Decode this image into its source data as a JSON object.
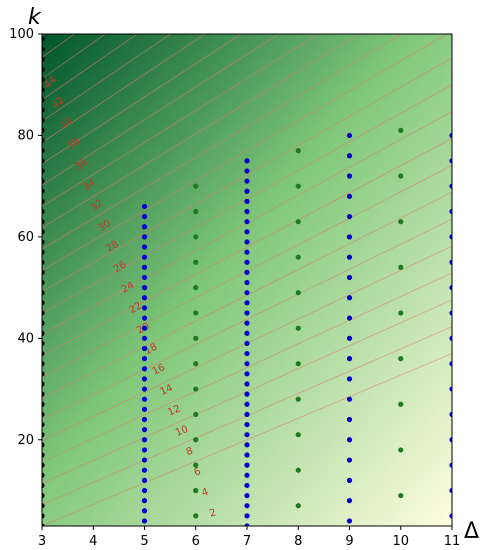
{
  "chart_data": {
    "type": "scatter",
    "title": "",
    "xlabel": "Δ",
    "ylabel": "k",
    "xlim": [
      3,
      11
    ],
    "ylim": [
      3,
      100
    ],
    "x_ticks": [
      "3",
      "4",
      "5",
      "6",
      "7",
      "8",
      "9",
      "10",
      "11"
    ],
    "y_ticks": [
      "20",
      "40",
      "60",
      "80",
      "100"
    ],
    "grid": false,
    "background": "green gradient heatmap, darker toward top-left",
    "colors": {
      "black_points": "#000000",
      "blue_points": "#0000cc",
      "green_points": "#1e7a1e",
      "contour_lines": "#e07b6a",
      "contour_labels": "#c0392b",
      "gradient_dark": "#00552b",
      "gradient_light": "#fffde0"
    },
    "contour_labels": [
      "2",
      "4",
      "6",
      "8",
      "10",
      "12",
      "14",
      "16",
      "18",
      "20",
      "22",
      "24",
      "26",
      "28",
      "30",
      "32",
      "34",
      "36",
      "38",
      "40",
      "42",
      "44"
    ],
    "series": [
      {
        "color": "black",
        "points": [
          [
            3,
            3
          ],
          [
            3,
            5
          ],
          [
            3,
            7
          ],
          [
            3,
            9
          ],
          [
            3,
            11
          ],
          [
            3,
            13
          ],
          [
            3,
            15
          ],
          [
            3,
            17
          ],
          [
            3,
            19
          ],
          [
            3,
            21
          ],
          [
            3,
            23
          ],
          [
            3,
            25
          ],
          [
            3,
            27
          ],
          [
            3,
            29
          ],
          [
            3,
            31
          ],
          [
            3,
            33
          ],
          [
            3,
            35
          ],
          [
            3,
            37
          ],
          [
            3,
            39
          ],
          [
            3,
            41
          ],
          [
            3,
            43
          ],
          [
            3,
            45
          ],
          [
            3,
            47
          ],
          [
            3,
            49
          ],
          [
            3,
            51
          ],
          [
            3,
            53
          ],
          [
            3,
            55
          ],
          [
            3,
            57
          ],
          [
            3,
            59
          ],
          [
            3,
            61
          ],
          [
            3,
            63
          ],
          [
            3,
            65
          ],
          [
            3,
            67
          ],
          [
            3,
            69
          ],
          [
            3,
            71
          ],
          [
            3,
            73
          ],
          [
            3,
            75
          ],
          [
            3,
            77
          ],
          [
            3,
            79
          ],
          [
            3,
            81
          ],
          [
            3,
            83
          ],
          [
            3,
            85
          ],
          [
            3,
            87
          ],
          [
            3,
            89
          ],
          [
            3,
            91
          ],
          [
            3,
            93
          ],
          [
            3,
            95
          ],
          [
            3,
            97
          ],
          [
            3,
            99
          ]
        ]
      },
      {
        "color": "blue",
        "points": [
          [
            5,
            4
          ],
          [
            5,
            6
          ],
          [
            5,
            8
          ],
          [
            5,
            10
          ],
          [
            5,
            12
          ],
          [
            5,
            14
          ],
          [
            5,
            16
          ],
          [
            5,
            18
          ],
          [
            5,
            20
          ],
          [
            5,
            22
          ],
          [
            5,
            24
          ],
          [
            5,
            26
          ],
          [
            5,
            28
          ],
          [
            5,
            30
          ],
          [
            5,
            32
          ],
          [
            5,
            34
          ],
          [
            5,
            36
          ],
          [
            5,
            38
          ],
          [
            5,
            40
          ],
          [
            5,
            42
          ],
          [
            5,
            44
          ],
          [
            5,
            46
          ],
          [
            5,
            48
          ],
          [
            5,
            50
          ],
          [
            5,
            52
          ],
          [
            5,
            54
          ],
          [
            5,
            56
          ],
          [
            5,
            58
          ],
          [
            5,
            60
          ],
          [
            5,
            62
          ],
          [
            5,
            64
          ],
          [
            5,
            66
          ],
          [
            7,
            3
          ],
          [
            7,
            5
          ],
          [
            7,
            7
          ],
          [
            7,
            9
          ],
          [
            7,
            11
          ],
          [
            7,
            13
          ],
          [
            7,
            15
          ],
          [
            7,
            17
          ],
          [
            7,
            19
          ],
          [
            7,
            21
          ],
          [
            7,
            23
          ],
          [
            7,
            25
          ],
          [
            7,
            27
          ],
          [
            7,
            29
          ],
          [
            7,
            31
          ],
          [
            7,
            33
          ],
          [
            7,
            35
          ],
          [
            7,
            37
          ],
          [
            7,
            39
          ],
          [
            7,
            41
          ],
          [
            7,
            43
          ],
          [
            7,
            45
          ],
          [
            7,
            47
          ],
          [
            7,
            49
          ],
          [
            7,
            51
          ],
          [
            7,
            53
          ],
          [
            7,
            55
          ],
          [
            7,
            57
          ],
          [
            7,
            59
          ],
          [
            7,
            61
          ],
          [
            7,
            63
          ],
          [
            7,
            65
          ],
          [
            7,
            67
          ],
          [
            7,
            69
          ],
          [
            7,
            71
          ],
          [
            7,
            73
          ],
          [
            7,
            75
          ],
          [
            9,
            4
          ],
          [
            9,
            8
          ],
          [
            9,
            12
          ],
          [
            9,
            16
          ],
          [
            9,
            20
          ],
          [
            9,
            24
          ],
          [
            9,
            28
          ],
          [
            9,
            32
          ],
          [
            9,
            36
          ],
          [
            9,
            40
          ],
          [
            9,
            44
          ],
          [
            9,
            48
          ],
          [
            9,
            52
          ],
          [
            9,
            56
          ],
          [
            9,
            60
          ],
          [
            9,
            64
          ],
          [
            9,
            68
          ],
          [
            9,
            72
          ],
          [
            9,
            76
          ],
          [
            9,
            80
          ],
          [
            11,
            5
          ],
          [
            11,
            10
          ],
          [
            11,
            15
          ],
          [
            11,
            20
          ],
          [
            11,
            25
          ],
          [
            11,
            30
          ],
          [
            11,
            35
          ],
          [
            11,
            40
          ],
          [
            11,
            45
          ],
          [
            11,
            50
          ],
          [
            11,
            55
          ],
          [
            11,
            60
          ],
          [
            11,
            65
          ],
          [
            11,
            70
          ],
          [
            11,
            75
          ],
          [
            11,
            80
          ]
        ]
      },
      {
        "color": "green",
        "points": [
          [
            6,
            5
          ],
          [
            6,
            10
          ],
          [
            6,
            15
          ],
          [
            6,
            20
          ],
          [
            6,
            25
          ],
          [
            6,
            30
          ],
          [
            6,
            35
          ],
          [
            6,
            40
          ],
          [
            6,
            45
          ],
          [
            6,
            50
          ],
          [
            6,
            55
          ],
          [
            6,
            60
          ],
          [
            6,
            65
          ],
          [
            6,
            70
          ],
          [
            8,
            7
          ],
          [
            8,
            14
          ],
          [
            8,
            21
          ],
          [
            8,
            28
          ],
          [
            8,
            35
          ],
          [
            8,
            42
          ],
          [
            8,
            49
          ],
          [
            8,
            56
          ],
          [
            8,
            63
          ],
          [
            8,
            70
          ],
          [
            8,
            77
          ],
          [
            10,
            9
          ],
          [
            10,
            18
          ],
          [
            10,
            27
          ],
          [
            10,
            36
          ],
          [
            10,
            45
          ],
          [
            10,
            54
          ],
          [
            10,
            63
          ],
          [
            10,
            72
          ],
          [
            10,
            81
          ]
        ]
      }
    ]
  }
}
